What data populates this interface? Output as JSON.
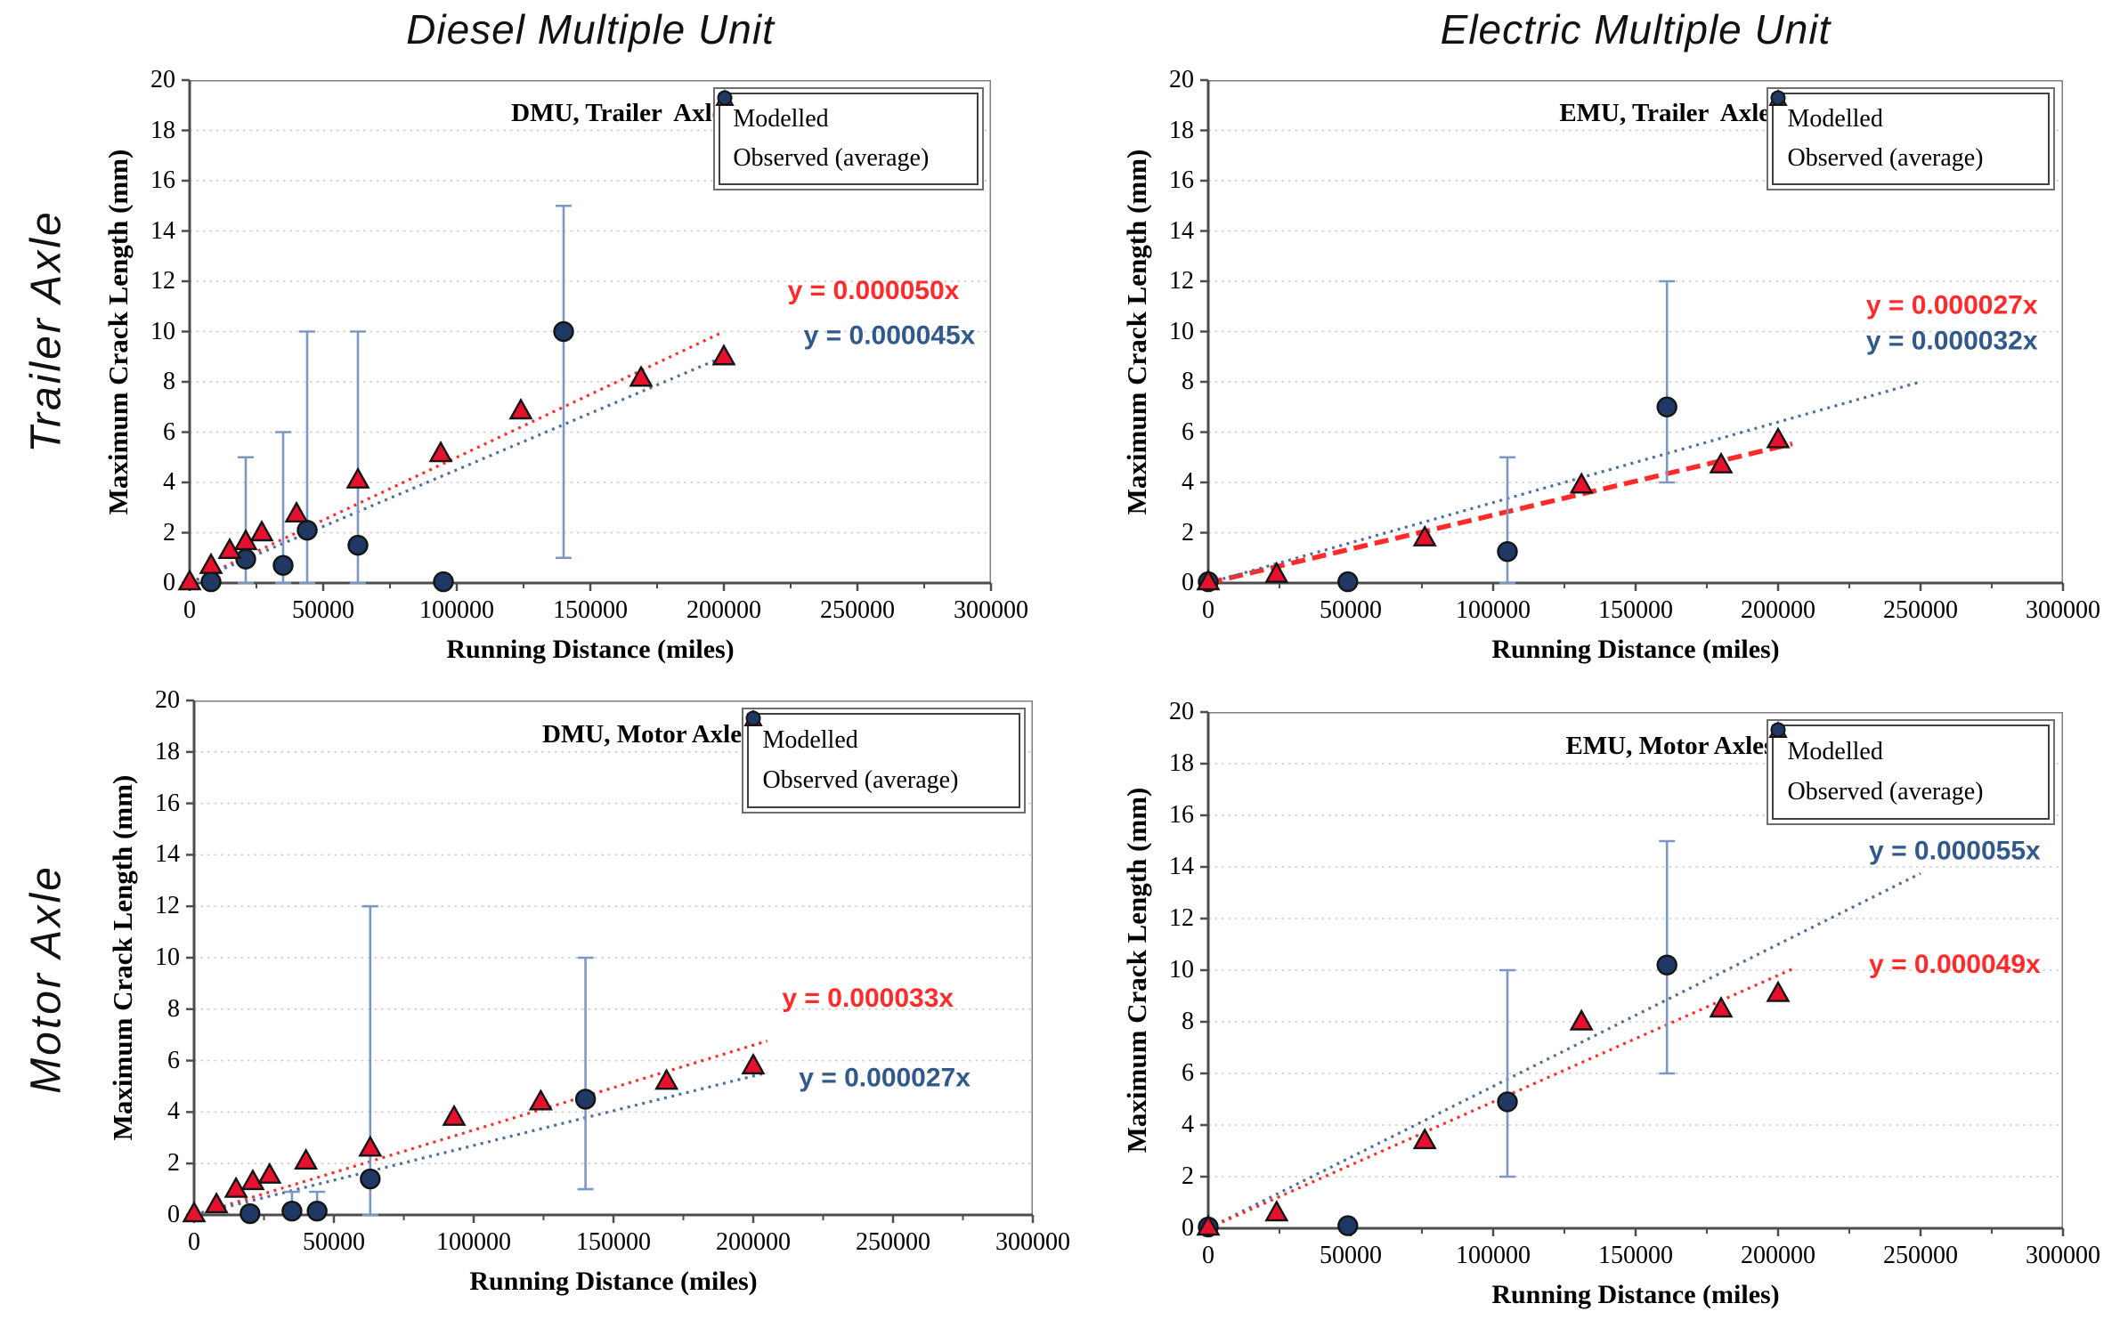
{
  "page_titles": {
    "column_1": "Diesel Multiple Unit",
    "column_2": "Electric Multiple Unit",
    "row_1": "Trailer Axle",
    "row_2": "Motor Axle"
  },
  "legend": {
    "modelled_label": "Modelled",
    "observed_label": "Observed (average)"
  },
  "axes": {
    "x_label": "Running Distance (miles)",
    "y_label": "Maximum Crack Length (mm)",
    "x_max": 300000,
    "y_max": 20,
    "x_major": [
      0,
      50000,
      100000,
      150000,
      200000,
      250000,
      300000
    ],
    "x_tick_labels": [
      "0",
      "50000",
      "100000",
      "150000",
      "200000",
      "250000",
      "300000"
    ],
    "x_minor": [
      25000,
      75000,
      125000,
      175000,
      225000,
      275000
    ],
    "y_major": [
      0,
      2,
      4,
      6,
      8,
      10,
      12,
      14,
      16,
      18,
      20
    ],
    "y_tick_labels": [
      "0",
      "2",
      "4",
      "6",
      "8",
      "10",
      "12",
      "14",
      "16",
      "18",
      "20"
    ],
    "grid_y": [
      2,
      4,
      6,
      8,
      10,
      12,
      14,
      16,
      18
    ],
    "grid": true
  },
  "colors": {
    "modelled_fill": "#e8112d",
    "observed_fill": "#1f3864",
    "marker_stroke": "#141414",
    "error_bar": "#7c98c0",
    "trend_red": "#ff2b2b",
    "trend_blue": "#4f6e99",
    "eq_red": "#ff2b2b",
    "eq_blue": "#31598c",
    "grid": "#c9c9c9",
    "axis": "#4d4d4d",
    "border": "#7f7f7f"
  },
  "chart_data": [
    {
      "type": "scatter",
      "name": "dmu-trailer-axles",
      "title": "DMU, Trailer  Axles",
      "series": [
        {
          "name": "Modelled",
          "x": [
            0,
            8000,
            15000,
            21000,
            27000,
            40000,
            63000,
            94000,
            124000,
            169000,
            200000
          ],
          "y": [
            0.05,
            0.7,
            1.3,
            1.65,
            2.0,
            2.75,
            4.1,
            5.15,
            6.85,
            8.15,
            9.0
          ]
        },
        {
          "name": "Observed (average)",
          "points": [
            {
              "x": 8000,
              "y": 0.05
            },
            {
              "x": 21000,
              "y": 0.95,
              "err_lo": 0,
              "err_hi": 5
            },
            {
              "x": 35000,
              "y": 0.7,
              "err_lo": 0,
              "err_hi": 6
            },
            {
              "x": 44000,
              "y": 2.1,
              "err_lo": 0,
              "err_hi": 10
            },
            {
              "x": 63000,
              "y": 1.5,
              "err_lo": 0,
              "err_hi": 10
            },
            {
              "x": 95000,
              "y": 0.05
            },
            {
              "x": 140000,
              "y": 10.0,
              "err_lo": 1,
              "err_hi": 15
            }
          ]
        }
      ],
      "trendlines": [
        {
          "series": "modelled",
          "slope": 5e-05,
          "x_end": 200000,
          "color_key": "red",
          "style": "dotted"
        },
        {
          "series": "observed",
          "slope": 4.5e-05,
          "x_end": 200000,
          "color_key": "blue",
          "style": "dotted"
        }
      ],
      "equations": [
        {
          "text": "y = 0.000050x",
          "color_key": "red",
          "x": 256000,
          "y": 11.3
        },
        {
          "text": "y = 0.000045x",
          "color_key": "blue",
          "x": 262000,
          "y": 9.5
        }
      ]
    },
    {
      "type": "scatter",
      "name": "emu-trailer-axles",
      "title": "EMU, Trailer  Axles",
      "series": [
        {
          "name": "Modelled",
          "x": [
            0,
            24000,
            76000,
            131000,
            180000,
            200000
          ],
          "y": [
            0.05,
            0.35,
            1.8,
            3.9,
            4.7,
            5.7
          ]
        },
        {
          "name": "Observed (average)",
          "points": [
            {
              "x": 0,
              "y": 0.05
            },
            {
              "x": 49000,
              "y": 0.05
            },
            {
              "x": 105000,
              "y": 1.25,
              "err_lo": 0,
              "err_hi": 5
            },
            {
              "x": 161000,
              "y": 7.0,
              "err_lo": 4,
              "err_hi": 12
            }
          ]
        }
      ],
      "trendlines": [
        {
          "series": "modelled",
          "slope": 2.7e-05,
          "x_end": 205000,
          "color_key": "red",
          "style": "dashed-bold"
        },
        {
          "series": "observed",
          "slope": 3.2e-05,
          "x_end": 250000,
          "color_key": "blue",
          "style": "dotted"
        }
      ],
      "equations": [
        {
          "text": "y = 0.000027x",
          "color_key": "red",
          "x": 261000,
          "y": 10.7
        },
        {
          "text": "y = 0.000032x",
          "color_key": "blue",
          "x": 261000,
          "y": 9.3
        }
      ]
    },
    {
      "type": "scatter",
      "name": "dmu-motor-axles",
      "title": "DMU, Motor Axles",
      "series": [
        {
          "name": "Modelled",
          "x": [
            0,
            8000,
            15000,
            21000,
            27000,
            40000,
            63000,
            93000,
            124000,
            169000,
            200000
          ],
          "y": [
            0.05,
            0.4,
            1.0,
            1.3,
            1.55,
            2.1,
            2.6,
            3.8,
            4.4,
            5.2,
            5.8
          ]
        },
        {
          "name": "Observed (average)",
          "points": [
            {
              "x": 20000,
              "y": 0.05
            },
            {
              "x": 35000,
              "y": 0.15,
              "err_lo": 0,
              "err_hi": 0.9
            },
            {
              "x": 44000,
              "y": 0.15,
              "err_lo": 0,
              "err_hi": 0.9
            },
            {
              "x": 63000,
              "y": 1.4,
              "err_lo": 0,
              "err_hi": 12
            },
            {
              "x": 140000,
              "y": 4.5,
              "err_lo": 1,
              "err_hi": 10
            }
          ]
        }
      ],
      "trendlines": [
        {
          "series": "modelled",
          "slope": 3.3e-05,
          "x_end": 205000,
          "color_key": "red",
          "style": "dotted"
        },
        {
          "series": "observed",
          "slope": 2.7e-05,
          "x_end": 205000,
          "color_key": "blue",
          "style": "dotted"
        }
      ],
      "equations": [
        {
          "text": "y = 0.000033x",
          "color_key": "red",
          "x": 241000,
          "y": 8.1
        },
        {
          "text": "y = 0.000027x",
          "color_key": "blue",
          "x": 247000,
          "y": 5.0
        }
      ]
    },
    {
      "type": "scatter",
      "name": "emu-motor-axles",
      "title": "EMU, Motor Axles",
      "series": [
        {
          "name": "Modelled",
          "x": [
            0,
            24000,
            76000,
            131000,
            180000,
            200000
          ],
          "y": [
            0.05,
            0.6,
            3.4,
            8.0,
            8.5,
            9.1
          ]
        },
        {
          "name": "Observed (average)",
          "points": [
            {
              "x": 0,
              "y": 0.05
            },
            {
              "x": 49000,
              "y": 0.1
            },
            {
              "x": 105000,
              "y": 4.9,
              "err_lo": 2,
              "err_hi": 10
            },
            {
              "x": 161000,
              "y": 10.2,
              "err_lo": 6,
              "err_hi": 15
            }
          ]
        }
      ],
      "trendlines": [
        {
          "series": "observed",
          "slope": 5.5e-05,
          "x_end": 250000,
          "color_key": "blue",
          "style": "dotted"
        },
        {
          "series": "modelled",
          "slope": 4.9e-05,
          "x_end": 205000,
          "color_key": "red",
          "style": "dotted"
        }
      ],
      "equations": [
        {
          "text": "y = 0.000055x",
          "color_key": "blue",
          "x": 262000,
          "y": 14.3
        },
        {
          "text": "y = 0.000049x",
          "color_key": "red",
          "x": 262000,
          "y": 9.9
        }
      ]
    }
  ]
}
